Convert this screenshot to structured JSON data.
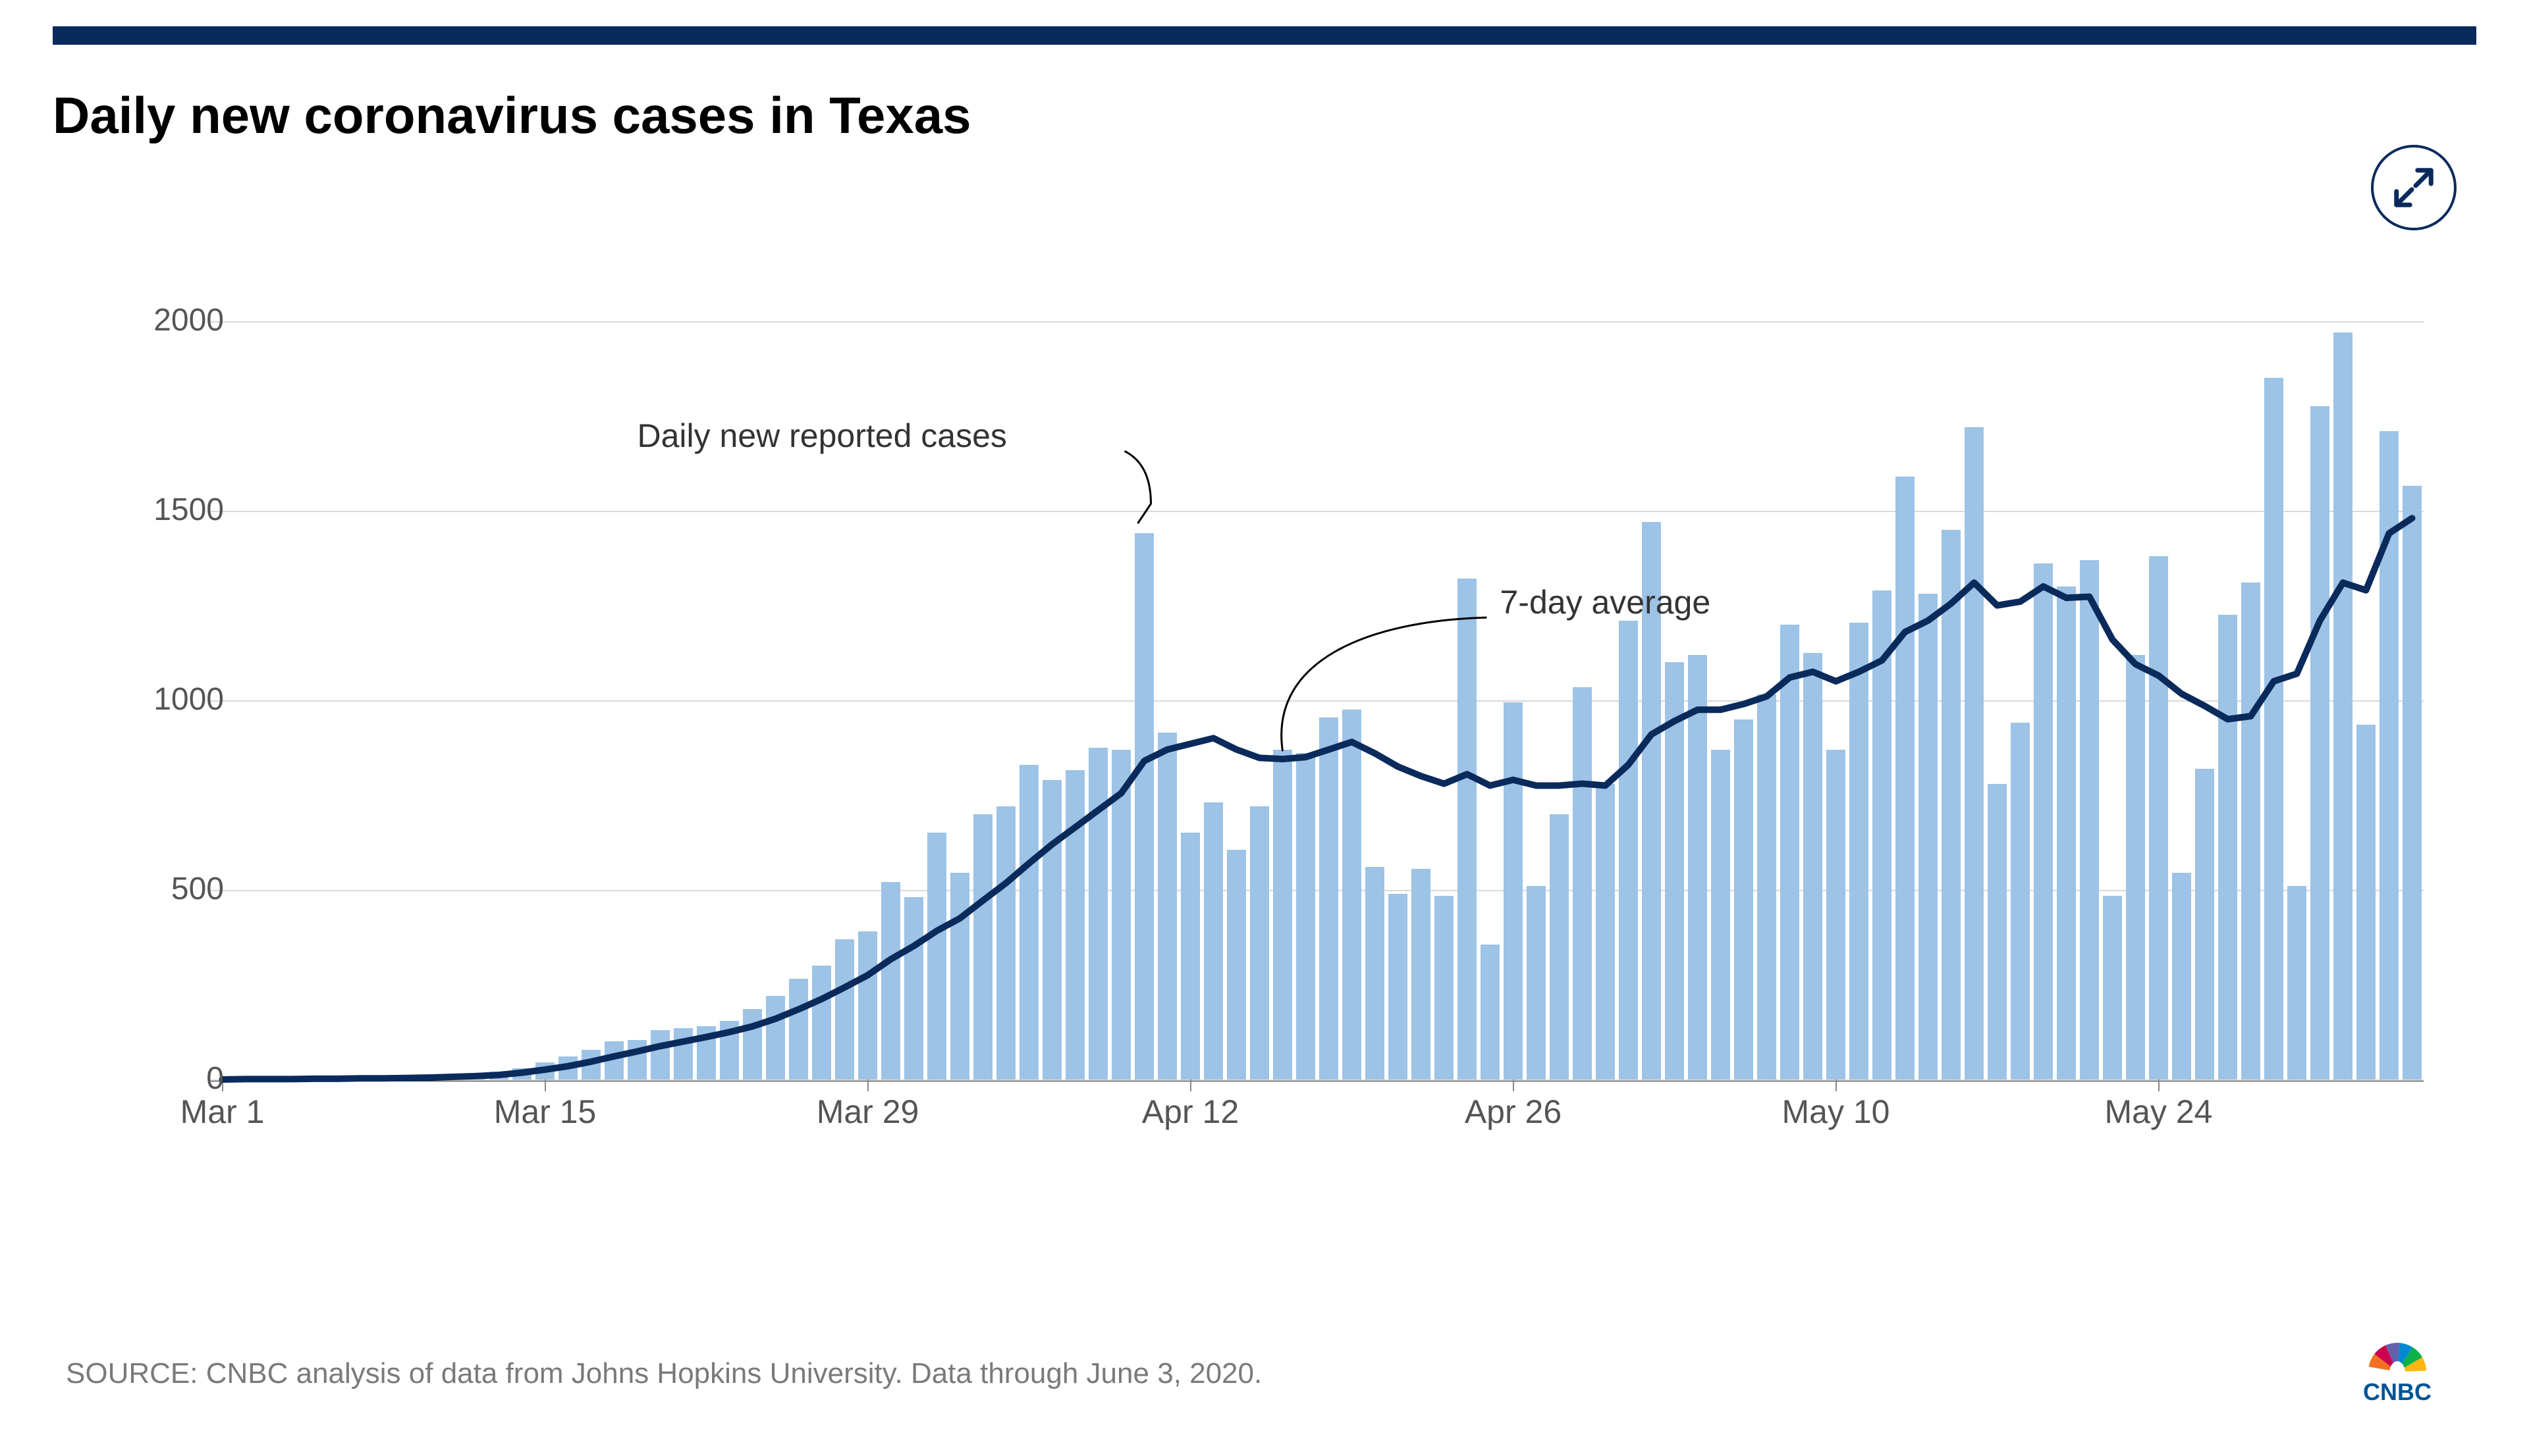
{
  "title": "Daily new coronavirus cases in Texas",
  "title_fontsize": 78,
  "source": "SOURCE: CNBC analysis of data from Johns Hopkins University. Data through June 3, 2020.",
  "source_fontsize": 44,
  "source_color": "#7a7a7a",
  "top_bar_color": "#0a2a5c",
  "expand_icon_color": "#0a2a5c",
  "chart": {
    "type": "bar+line",
    "background_color": "#ffffff",
    "grid_color": "#d9d9d9",
    "axis_color": "#333333",
    "tick_color": "#888888",
    "bar_color": "#9dc3e6",
    "line_color": "#0a2a5c",
    "line_width": 10,
    "bar_gap_ratio": 0.15,
    "ylim": [
      0,
      2100
    ],
    "yticks": [
      0,
      500,
      1000,
      1500,
      2000
    ],
    "ytick_fontsize": 48,
    "xtick_fontsize": 50,
    "xticks": [
      {
        "index": 0,
        "label": "Mar 1"
      },
      {
        "index": 14,
        "label": "Mar 15"
      },
      {
        "index": 28,
        "label": "Mar 29"
      },
      {
        "index": 42,
        "label": "Apr 12"
      },
      {
        "index": 56,
        "label": "Apr 26"
      },
      {
        "index": 70,
        "label": "May 10"
      },
      {
        "index": 84,
        "label": "May 24"
      }
    ],
    "annotations": {
      "bars_label": "Daily new reported cases",
      "line_label": "7-day average",
      "annotation_fontsize": 50,
      "annotation_color": "#333333",
      "leader_color": "#000000"
    },
    "bar_values": [
      0,
      1,
      2,
      2,
      2,
      3,
      4,
      5,
      7,
      8,
      10,
      12,
      20,
      30,
      45,
      60,
      78,
      100,
      105,
      130,
      135,
      140,
      155,
      185,
      220,
      265,
      300,
      370,
      390,
      520,
      480,
      650,
      545,
      700,
      720,
      830,
      790,
      815,
      875,
      870,
      1440,
      915,
      650,
      730,
      605,
      720,
      870,
      860,
      955,
      975,
      560,
      490,
      555,
      485,
      1320,
      355,
      995,
      510,
      700,
      1035,
      780,
      1210,
      1470,
      1100,
      1120,
      870,
      950,
      1015,
      1200,
      1125,
      870,
      1205,
      1290,
      1590,
      1280,
      1450,
      1720,
      780,
      940,
      1360,
      1300,
      1370,
      485,
      1120,
      1380,
      545,
      820,
      1225,
      1310,
      1850,
      510,
      1775,
      1970,
      935,
      1710,
      1565
    ],
    "moving_avg_7": [
      0,
      1,
      1,
      1,
      2,
      2,
      3,
      3,
      4,
      5,
      7,
      9,
      12,
      18,
      26,
      35,
      47,
      61,
      74,
      88,
      100,
      112,
      125,
      140,
      160,
      185,
      212,
      243,
      275,
      317,
      352,
      392,
      425,
      472,
      518,
      570,
      620,
      665,
      710,
      755,
      840,
      870,
      885,
      900,
      870,
      848,
      845,
      850,
      870,
      890,
      860,
      825,
      800,
      780,
      805,
      775,
      790,
      775,
      775,
      780,
      775,
      830,
      910,
      945,
      975,
      975,
      990,
      1010,
      1060,
      1075,
      1050,
      1075,
      1105,
      1180,
      1210,
      1255,
      1310,
      1250,
      1260,
      1300,
      1270,
      1273,
      1160,
      1095,
      1065,
      1017,
      985,
      950,
      958,
      1050,
      1070,
      1210,
      1310,
      1290,
      1440,
      1480
    ]
  },
  "cnbc_logo": {
    "bars": [
      "#f37021",
      "#cc004c",
      "#6460aa",
      "#0089d0",
      "#0db14b",
      "#fcb711"
    ],
    "text": "CNBC",
    "text_color": "#005594"
  }
}
